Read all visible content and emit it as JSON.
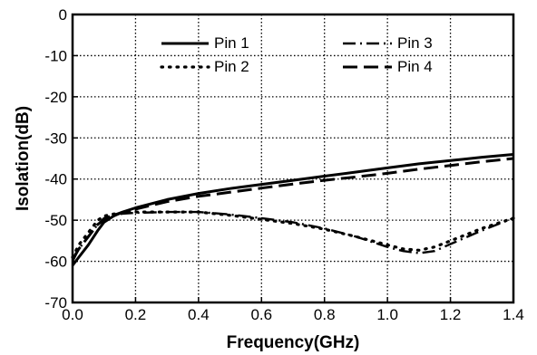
{
  "chart_data": {
    "type": "line",
    "title": "",
    "xlabel": "Frequency(GHz)",
    "ylabel": "Isolation(dB)",
    "xlim": [
      0.0,
      1.4
    ],
    "ylim": [
      -70,
      0
    ],
    "x_ticks": [
      0.0,
      0.2,
      0.4,
      0.6,
      0.8,
      1.0,
      1.2,
      1.4
    ],
    "x_tick_labels": [
      "0.0",
      "0.2",
      "0.4",
      "0.6",
      "0.8",
      "1.0",
      "1.2",
      "1.4"
    ],
    "y_ticks": [
      0,
      -10,
      -20,
      -30,
      -40,
      -50,
      -60,
      -70
    ],
    "y_tick_labels": [
      "0",
      "-10",
      "-20",
      "-30",
      "-40",
      "-50",
      "-60",
      "-70"
    ],
    "grid": true,
    "legend": {
      "position": "top",
      "columns": 2
    },
    "series": [
      {
        "name": "Pin 1",
        "line_style": "solid",
        "x": [
          0.0,
          0.02,
          0.05,
          0.08,
          0.1,
          0.13,
          0.16,
          0.2,
          0.3,
          0.4,
          0.5,
          0.6,
          0.7,
          0.8,
          0.9,
          1.0,
          1.1,
          1.2,
          1.3,
          1.4
        ],
        "y": [
          -61,
          -59,
          -56,
          -52.5,
          -50.5,
          -49,
          -48,
          -47,
          -45,
          -43.5,
          -42.3,
          -41.3,
          -40.3,
          -39.3,
          -38.3,
          -37.3,
          -36.3,
          -35.5,
          -34.7,
          -34
        ]
      },
      {
        "name": "Pin 2",
        "line_style": "dotted",
        "x": [
          0.0,
          0.02,
          0.05,
          0.08,
          0.1,
          0.13,
          0.16,
          0.2,
          0.3,
          0.4,
          0.5,
          0.6,
          0.7,
          0.8,
          0.9,
          1.0,
          1.05,
          1.1,
          1.15,
          1.2,
          1.3,
          1.4
        ],
        "y": [
          -59,
          -56,
          -53,
          -50,
          -49,
          -48.5,
          -48.2,
          -48,
          -48,
          -48,
          -48.8,
          -49.8,
          -50.8,
          -52.2,
          -54,
          -56,
          -57,
          -57.3,
          -56.5,
          -55,
          -52,
          -49.5
        ]
      },
      {
        "name": "Pin 3",
        "line_style": "dashdot",
        "x": [
          0.0,
          0.02,
          0.05,
          0.08,
          0.1,
          0.13,
          0.16,
          0.2,
          0.3,
          0.4,
          0.5,
          0.6,
          0.7,
          0.8,
          0.9,
          1.0,
          1.05,
          1.1,
          1.15,
          1.2,
          1.3,
          1.4
        ],
        "y": [
          -60,
          -57,
          -54,
          -51,
          -49.5,
          -48.8,
          -48.4,
          -48.2,
          -48,
          -48,
          -48.6,
          -49.5,
          -50.5,
          -52,
          -54,
          -56.5,
          -57.5,
          -58,
          -57.5,
          -55.8,
          -52.5,
          -49.5
        ]
      },
      {
        "name": "Pin 4",
        "line_style": "dashed",
        "x": [
          0.0,
          0.02,
          0.05,
          0.08,
          0.1,
          0.13,
          0.16,
          0.2,
          0.3,
          0.4,
          0.5,
          0.6,
          0.7,
          0.8,
          0.9,
          1.0,
          1.1,
          1.2,
          1.3,
          1.4
        ],
        "y": [
          -59.5,
          -57,
          -54,
          -51,
          -50,
          -48.8,
          -48,
          -47.3,
          -45.5,
          -44.2,
          -43.2,
          -42.2,
          -41.2,
          -40.3,
          -39.5,
          -38.6,
          -37.6,
          -36.7,
          -35.8,
          -35
        ]
      }
    ]
  },
  "colors": {
    "line": "#000000",
    "grid": "#000000",
    "background": "#ffffff"
  }
}
